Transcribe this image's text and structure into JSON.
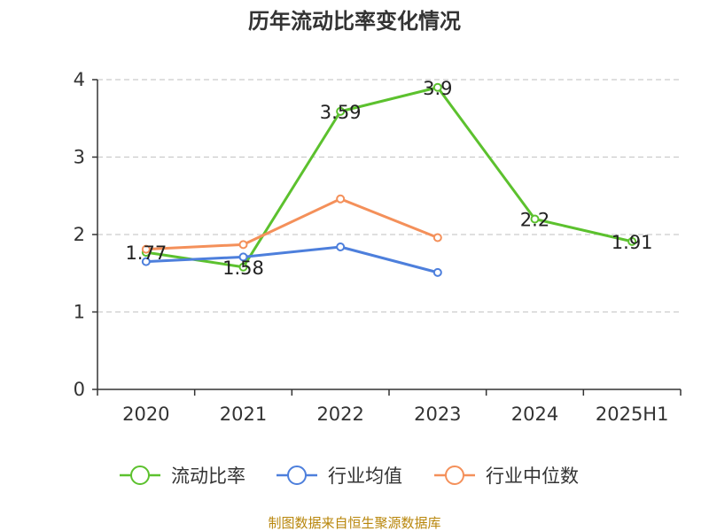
{
  "chart_data": {
    "type": "line",
    "title": "历年流动比率变化情况",
    "categories": [
      "2020",
      "2021",
      "2022",
      "2023",
      "2024",
      "2025H1"
    ],
    "ylim": [
      0,
      4
    ],
    "yticks": [
      "0",
      "1",
      "2",
      "3",
      "4"
    ],
    "grid": "horizontal dashed",
    "legend_position": "bottom",
    "series": [
      {
        "name": "流动比率",
        "color": "#5cc12e",
        "values": [
          1.77,
          1.58,
          3.59,
          3.9,
          2.2,
          1.91
        ],
        "labels": [
          "1.77",
          "1.58",
          "3.59",
          "3.9",
          "2.2",
          "1.91"
        ]
      },
      {
        "name": "行业均值",
        "color": "#4d7fdc",
        "values": [
          1.65,
          1.71,
          1.84,
          1.51,
          null,
          null
        ]
      },
      {
        "name": "行业中位数",
        "color": "#f4905a",
        "values": [
          1.81,
          1.87,
          2.46,
          1.96,
          null,
          null
        ]
      }
    ],
    "source": "制图数据来自恒生聚源数据库"
  }
}
